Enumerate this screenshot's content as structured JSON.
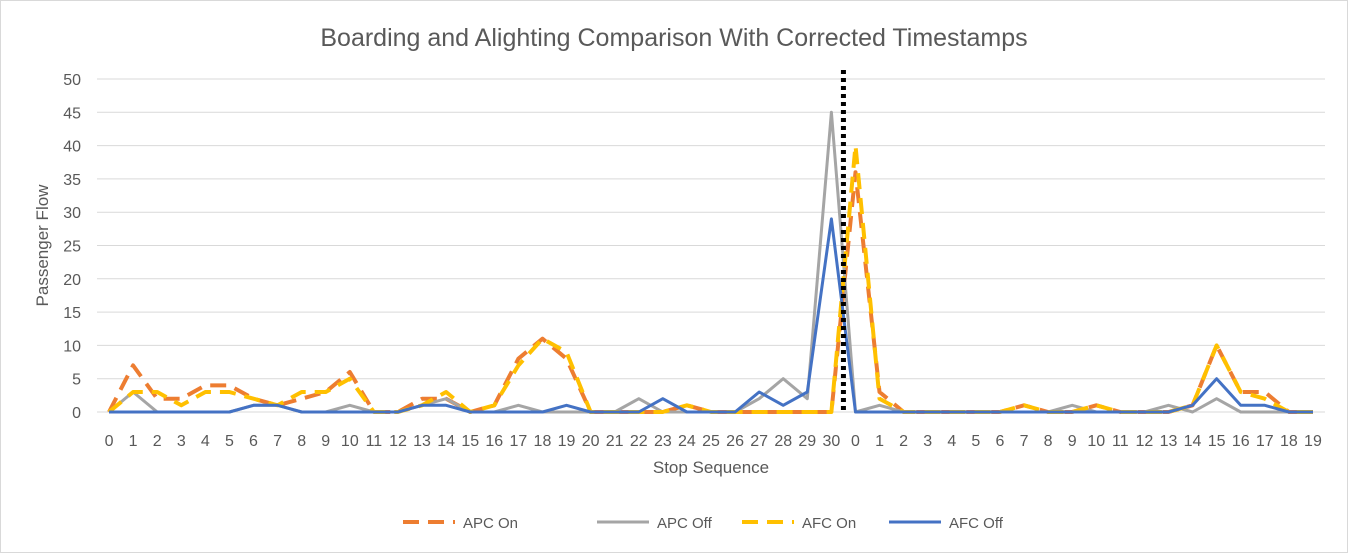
{
  "chart_data": {
    "type": "line",
    "title": "Boarding and Alighting Comparison With Corrected Timestamps",
    "xlabel": "Stop Sequence",
    "ylabel": "Passenger Flow",
    "ylim": [
      0,
      50
    ],
    "yticks": [
      0,
      5,
      10,
      15,
      20,
      25,
      30,
      35,
      40,
      45,
      50
    ],
    "grid": true,
    "legend_position": "bottom",
    "categories": [
      "0",
      "1",
      "2",
      "3",
      "4",
      "5",
      "6",
      "7",
      "8",
      "9",
      "10",
      "11",
      "12",
      "13",
      "14",
      "15",
      "16",
      "17",
      "18",
      "19",
      "20",
      "21",
      "22",
      "23",
      "24",
      "25",
      "26",
      "27",
      "28",
      "29",
      "30",
      "0",
      "1",
      "2",
      "3",
      "4",
      "5",
      "6",
      "7",
      "8",
      "9",
      "10",
      "11",
      "12",
      "13",
      "14",
      "15",
      "16",
      "17",
      "18",
      "19"
    ],
    "divider_after_category_index": 30,
    "series": [
      {
        "name": "APC On",
        "color": "#ED7D31",
        "dash": "long-dash",
        "values": [
          0,
          7,
          2,
          2,
          4,
          4,
          2,
          1,
          2,
          3,
          6,
          0,
          0,
          2,
          2,
          0,
          1,
          8,
          11,
          8,
          0,
          0,
          0,
          0,
          1,
          0,
          0,
          0,
          0,
          0,
          0,
          36,
          3,
          0,
          0,
          0,
          0,
          0,
          1,
          0,
          0,
          1,
          0,
          0,
          0,
          1,
          10,
          3,
          3,
          0,
          0
        ]
      },
      {
        "name": "APC Off",
        "color": "#A5A5A5",
        "dash": "solid",
        "values": [
          0,
          3,
          0,
          0,
          0,
          0,
          1,
          1,
          0,
          0,
          1,
          0,
          0,
          1,
          2,
          0,
          0,
          1,
          0,
          0,
          0,
          0,
          2,
          0,
          0,
          0,
          0,
          2,
          5,
          2,
          45,
          0,
          1,
          0,
          0,
          0,
          0,
          0,
          0,
          0,
          1,
          0,
          0,
          0,
          1,
          0,
          2,
          0,
          0,
          0,
          0
        ]
      },
      {
        "name": "AFC On",
        "color": "#FFC000",
        "dash": "long-dash",
        "values": [
          0,
          3,
          3,
          1,
          3,
          3,
          2,
          1,
          3,
          3,
          5,
          0,
          0,
          1,
          3,
          0,
          1,
          7,
          11,
          9,
          0,
          0,
          0,
          0,
          1,
          0,
          0,
          0,
          0,
          0,
          0,
          40,
          2,
          0,
          0,
          0,
          0,
          0,
          1,
          0,
          0,
          1,
          0,
          0,
          0,
          1,
          10,
          3,
          2,
          0,
          0
        ]
      },
      {
        "name": "AFC Off",
        "color": "#4472C4",
        "dash": "solid",
        "values": [
          0,
          0,
          0,
          0,
          0,
          0,
          1,
          1,
          0,
          0,
          0,
          0,
          0,
          1,
          1,
          0,
          0,
          0,
          0,
          1,
          0,
          0,
          0,
          2,
          0,
          0,
          0,
          3,
          1,
          3,
          29,
          0,
          0,
          0,
          0,
          0,
          0,
          0,
          0,
          0,
          0,
          0,
          0,
          0,
          0,
          1,
          5,
          1,
          1,
          0,
          0
        ]
      }
    ]
  }
}
